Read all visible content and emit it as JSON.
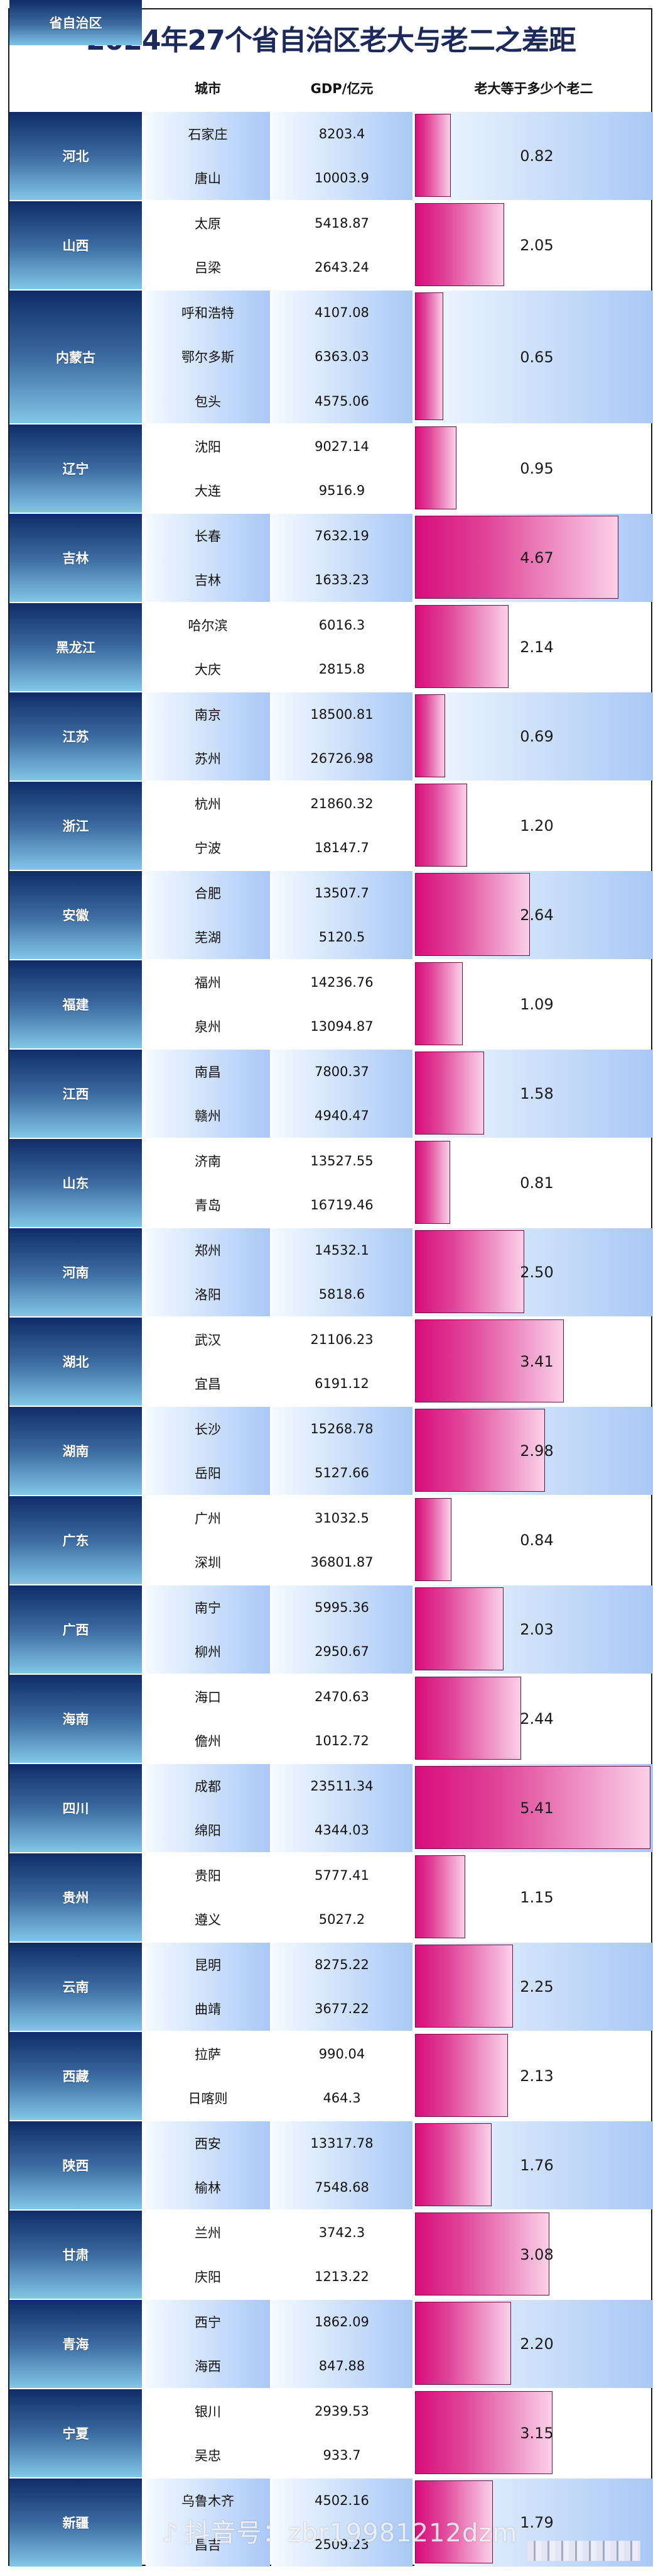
{
  "title": "2024年27个省自治区老大与老二之差距",
  "headers": {
    "province": "省自治区",
    "city": "城市",
    "gdp": "GDP/亿元",
    "ratio": "老大等于多少个老二"
  },
  "colors": {
    "title": "#1b2a5a",
    "province_top": "#0f2c68",
    "province_bottom": "#82c6e6",
    "bar_start": "#d80c7c",
    "bar_end": "#fbd0e8",
    "bar_border": "#6b1040",
    "row_band_start": "#f4faff",
    "row_band_end": "#a9c8f6"
  },
  "rows": [
    {
      "province": "河北",
      "cities": [
        "石家庄",
        "唐山"
      ],
      "gdp": [
        "8203.4",
        "10003.9"
      ],
      "ratio": "0.82"
    },
    {
      "province": "山西",
      "cities": [
        "太原",
        "吕梁"
      ],
      "gdp": [
        "5418.87",
        "2643.24"
      ],
      "ratio": "2.05"
    },
    {
      "province": "内蒙古",
      "cities": [
        "呼和浩特",
        "鄂尔多斯",
        "包头"
      ],
      "gdp": [
        "4107.08",
        "6363.03",
        "4575.06"
      ],
      "ratio": "0.65"
    },
    {
      "province": "辽宁",
      "cities": [
        "沈阳",
        "大连"
      ],
      "gdp": [
        "9027.14",
        "9516.9"
      ],
      "ratio": "0.95"
    },
    {
      "province": "吉林",
      "cities": [
        "长春",
        "吉林"
      ],
      "gdp": [
        "7632.19",
        "1633.23"
      ],
      "ratio": "4.67"
    },
    {
      "province": "黑龙江",
      "cities": [
        "哈尔滨",
        "大庆"
      ],
      "gdp": [
        "6016.3",
        "2815.8"
      ],
      "ratio": "2.14"
    },
    {
      "province": "江苏",
      "cities": [
        "南京",
        "苏州"
      ],
      "gdp": [
        "18500.81",
        "26726.98"
      ],
      "ratio": "0.69"
    },
    {
      "province": "浙江",
      "cities": [
        "杭州",
        "宁波"
      ],
      "gdp": [
        "21860.32",
        "18147.7"
      ],
      "ratio": "1.20"
    },
    {
      "province": "安徽",
      "cities": [
        "合肥",
        "芜湖"
      ],
      "gdp": [
        "13507.7",
        "5120.5"
      ],
      "ratio": "2.64"
    },
    {
      "province": "福建",
      "cities": [
        "福州",
        "泉州"
      ],
      "gdp": [
        "14236.76",
        "13094.87"
      ],
      "ratio": "1.09"
    },
    {
      "province": "江西",
      "cities": [
        "南昌",
        "赣州"
      ],
      "gdp": [
        "7800.37",
        "4940.47"
      ],
      "ratio": "1.58"
    },
    {
      "province": "山东",
      "cities": [
        "济南",
        "青岛"
      ],
      "gdp": [
        "13527.55",
        "16719.46"
      ],
      "ratio": "0.81"
    },
    {
      "province": "河南",
      "cities": [
        "郑州",
        "洛阳"
      ],
      "gdp": [
        "14532.1",
        "5818.6"
      ],
      "ratio": "2.50"
    },
    {
      "province": "湖北",
      "cities": [
        "武汉",
        "宜昌"
      ],
      "gdp": [
        "21106.23",
        "6191.12"
      ],
      "ratio": "3.41"
    },
    {
      "province": "湖南",
      "cities": [
        "长沙",
        "岳阳"
      ],
      "gdp": [
        "15268.78",
        "5127.66"
      ],
      "ratio": "2.98"
    },
    {
      "province": "广东",
      "cities": [
        "广州",
        "深圳"
      ],
      "gdp": [
        "31032.5",
        "36801.87"
      ],
      "ratio": "0.84"
    },
    {
      "province": "广西",
      "cities": [
        "南宁",
        "柳州"
      ],
      "gdp": [
        "5995.36",
        "2950.67"
      ],
      "ratio": "2.03"
    },
    {
      "province": "海南",
      "cities": [
        "海口",
        "儋州"
      ],
      "gdp": [
        "2470.63",
        "1012.72"
      ],
      "ratio": "2.44"
    },
    {
      "province": "四川",
      "cities": [
        "成都",
        "绵阳"
      ],
      "gdp": [
        "23511.34",
        "4344.03"
      ],
      "ratio": "5.41"
    },
    {
      "province": "贵州",
      "cities": [
        "贵阳",
        "遵义"
      ],
      "gdp": [
        "5777.41",
        "5027.2"
      ],
      "ratio": "1.15"
    },
    {
      "province": "云南",
      "cities": [
        "昆明",
        "曲靖"
      ],
      "gdp": [
        "8275.22",
        "3677.22"
      ],
      "ratio": "2.25"
    },
    {
      "province": "西藏",
      "cities": [
        "拉萨",
        "日喀则"
      ],
      "gdp": [
        "990.04",
        "464.3"
      ],
      "ratio": "2.13"
    },
    {
      "province": "陕西",
      "cities": [
        "西安",
        "榆林"
      ],
      "gdp": [
        "13317.78",
        "7548.68"
      ],
      "ratio": "1.76"
    },
    {
      "province": "甘肃",
      "cities": [
        "兰州",
        "庆阳"
      ],
      "gdp": [
        "3742.3",
        "1213.22"
      ],
      "ratio": "3.08"
    },
    {
      "province": "青海",
      "cities": [
        "西宁",
        "海西"
      ],
      "gdp": [
        "1862.09",
        "847.88"
      ],
      "ratio": "2.20"
    },
    {
      "province": "宁夏",
      "cities": [
        "银川",
        "吴忠"
      ],
      "gdp": [
        "2939.53",
        "933.7"
      ],
      "ratio": "3.15"
    },
    {
      "province": "新疆",
      "cities": [
        "乌鲁木齐",
        "昌吉"
      ],
      "gdp": [
        "4502.16",
        "2509.23"
      ],
      "ratio": "1.79"
    }
  ],
  "watermark": {
    "icon": "douyin-note-icon",
    "glyph": "♪",
    "text": "抖音号：zbr19981212dzm"
  },
  "chart_data": {
    "type": "bar",
    "orientation": "horizontal",
    "title": "2024年27个省自治区老大与老二之差距",
    "xlabel": "老大等于多少个老二",
    "ylabel": "省自治区",
    "categories": [
      "河北",
      "山西",
      "内蒙古",
      "辽宁",
      "吉林",
      "黑龙江",
      "江苏",
      "浙江",
      "安徽",
      "福建",
      "江西",
      "山东",
      "河南",
      "湖北",
      "湖南",
      "广东",
      "广西",
      "海南",
      "四川",
      "贵州",
      "云南",
      "西藏",
      "陕西",
      "甘肃",
      "青海",
      "宁夏",
      "新疆"
    ],
    "values": [
      0.82,
      2.05,
      0.65,
      0.95,
      4.67,
      2.14,
      0.69,
      1.2,
      2.64,
      1.09,
      1.58,
      0.81,
      2.5,
      3.41,
      2.98,
      0.84,
      2.03,
      2.44,
      5.41,
      1.15,
      2.25,
      2.13,
      1.76,
      3.08,
      2.2,
      3.15,
      1.79
    ],
    "table_columns": [
      "省自治区",
      "城市",
      "GDP/亿元",
      "老大等于多少个老二"
    ],
    "xlim": [
      0,
      5.5
    ],
    "grid": false,
    "legend": null
  }
}
